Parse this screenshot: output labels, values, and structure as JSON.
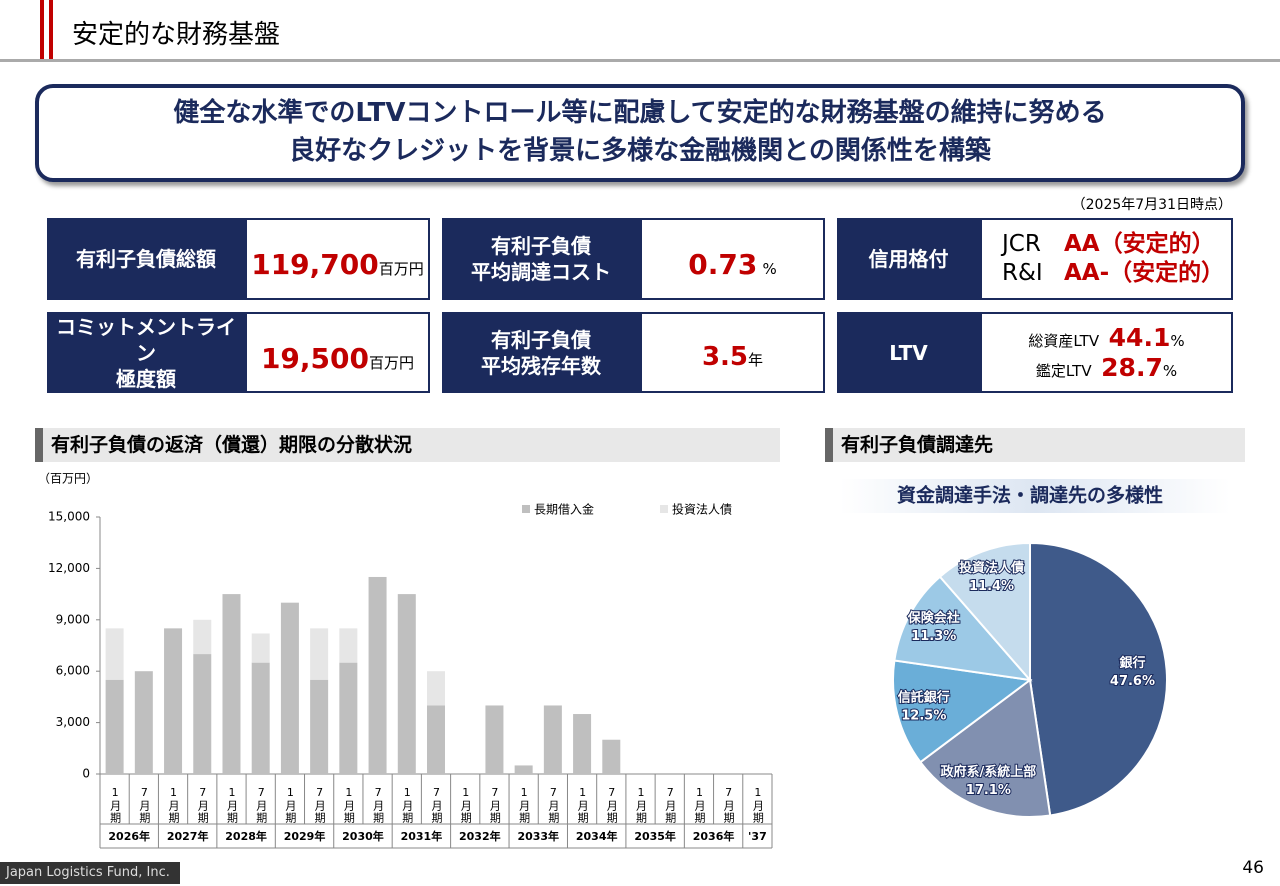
{
  "header": {
    "title": "安定的な財務基盤"
  },
  "summary": {
    "lines": [
      "健全な水準でのLTVコントロール等に配慮して安定的な財務基盤の維持に努める",
      "良好なクレジットを背景に多様な金融機関との関係性を構築"
    ]
  },
  "as_of": "（2025年7月31日時点）",
  "metrics": {
    "total_debt": {
      "label": "有利子負債総額",
      "value": "119,700",
      "unit": "百万円"
    },
    "avg_cost": {
      "label": [
        "有利子負債",
        "平均調達コスト"
      ],
      "value": "0.73",
      "unit": "%"
    },
    "rating": {
      "label": "信用格付",
      "agencies": [
        {
          "name": "JCR",
          "grade": "AA（安定的）"
        },
        {
          "name": "R&I",
          "grade": "AA-（安定的）"
        }
      ]
    },
    "commitment": {
      "label": [
        "コミットメントライン",
        "極度額"
      ],
      "value": "19,500",
      "unit": "百万円"
    },
    "avg_term": {
      "label": [
        "有利子負債",
        "平均残存年数"
      ],
      "value": "3.5",
      "unit": "年"
    },
    "ltv": {
      "label": "LTV",
      "items": [
        {
          "name": "総資産LTV",
          "value": "44.1",
          "unit": "%"
        },
        {
          "name": "鑑定LTV",
          "value": "28.7",
          "unit": "%"
        }
      ]
    }
  },
  "sections": [
    "有利子負債の返済（償還）期限の分散状況",
    "有利子負債調達先"
  ],
  "chart_data": [
    {
      "type": "bar",
      "stacked": true,
      "ylabel": "（百万円）",
      "categories": [
        "1月期",
        "7月期",
        "1月期",
        "7月期",
        "1月期",
        "7月期",
        "1月期",
        "7月期",
        "1月期",
        "7月期",
        "1月期",
        "7月期",
        "1月期",
        "7月期",
        "1月期",
        "7月期",
        "1月期",
        "7月期",
        "1月期",
        "7月期",
        "1月期",
        "7月期",
        "1月期"
      ],
      "x_groups": [
        "2026年",
        "2027年",
        "2028年",
        "2029年",
        "2030年",
        "2031年",
        "2032年",
        "2033年",
        "2034年",
        "2035年",
        "2036年",
        "'37"
      ],
      "series": [
        {
          "name": "長期借入金",
          "color": "#bfbfbf",
          "values": [
            5500,
            6000,
            8500,
            7000,
            10500,
            6500,
            10000,
            5500,
            6500,
            11500,
            10500,
            4000,
            0,
            4000,
            500,
            4000,
            3500,
            2000,
            0,
            0,
            0,
            0,
            0
          ]
        },
        {
          "name": "投資法人債",
          "color": "#e6e6e6",
          "values": [
            3000,
            0,
            0,
            2000,
            0,
            1700,
            0,
            3000,
            2000,
            0,
            0,
            2000,
            0,
            0,
            0,
            0,
            0,
            0,
            0,
            0,
            0,
            0,
            0
          ]
        }
      ],
      "ylim": [
        0,
        15000
      ],
      "yticks": [
        0,
        {
          "value": 3000,
          "label": "3,000"
        },
        {
          "value": 6000,
          "label": "6,000"
        },
        {
          "value": 9000,
          "label": "9,000"
        },
        {
          "value": 12000,
          "label": "12,000"
        },
        {
          "value": 15000,
          "label": "15,000"
        }
      ],
      "legend": "top-right"
    },
    {
      "type": "pie",
      "title": "資金調達手法・調達先の多様性",
      "categories": [
        "銀行",
        "政府系/系統上部",
        "信託銀行",
        "保険会社",
        "投資法人債"
      ],
      "values": [
        47.6,
        17.1,
        12.5,
        11.3,
        11.4
      ],
      "value_labels": [
        "47.6%",
        "17.1%",
        "12.5%",
        "11.3%",
        "11.4%"
      ],
      "colors": [
        "#3f5a8a",
        "#8190b0",
        "#6aaed8",
        "#9cc9e6",
        "#c5dced"
      ]
    }
  ],
  "footer": {
    "company": "Japan Logistics Fund, Inc.",
    "page": "46"
  }
}
